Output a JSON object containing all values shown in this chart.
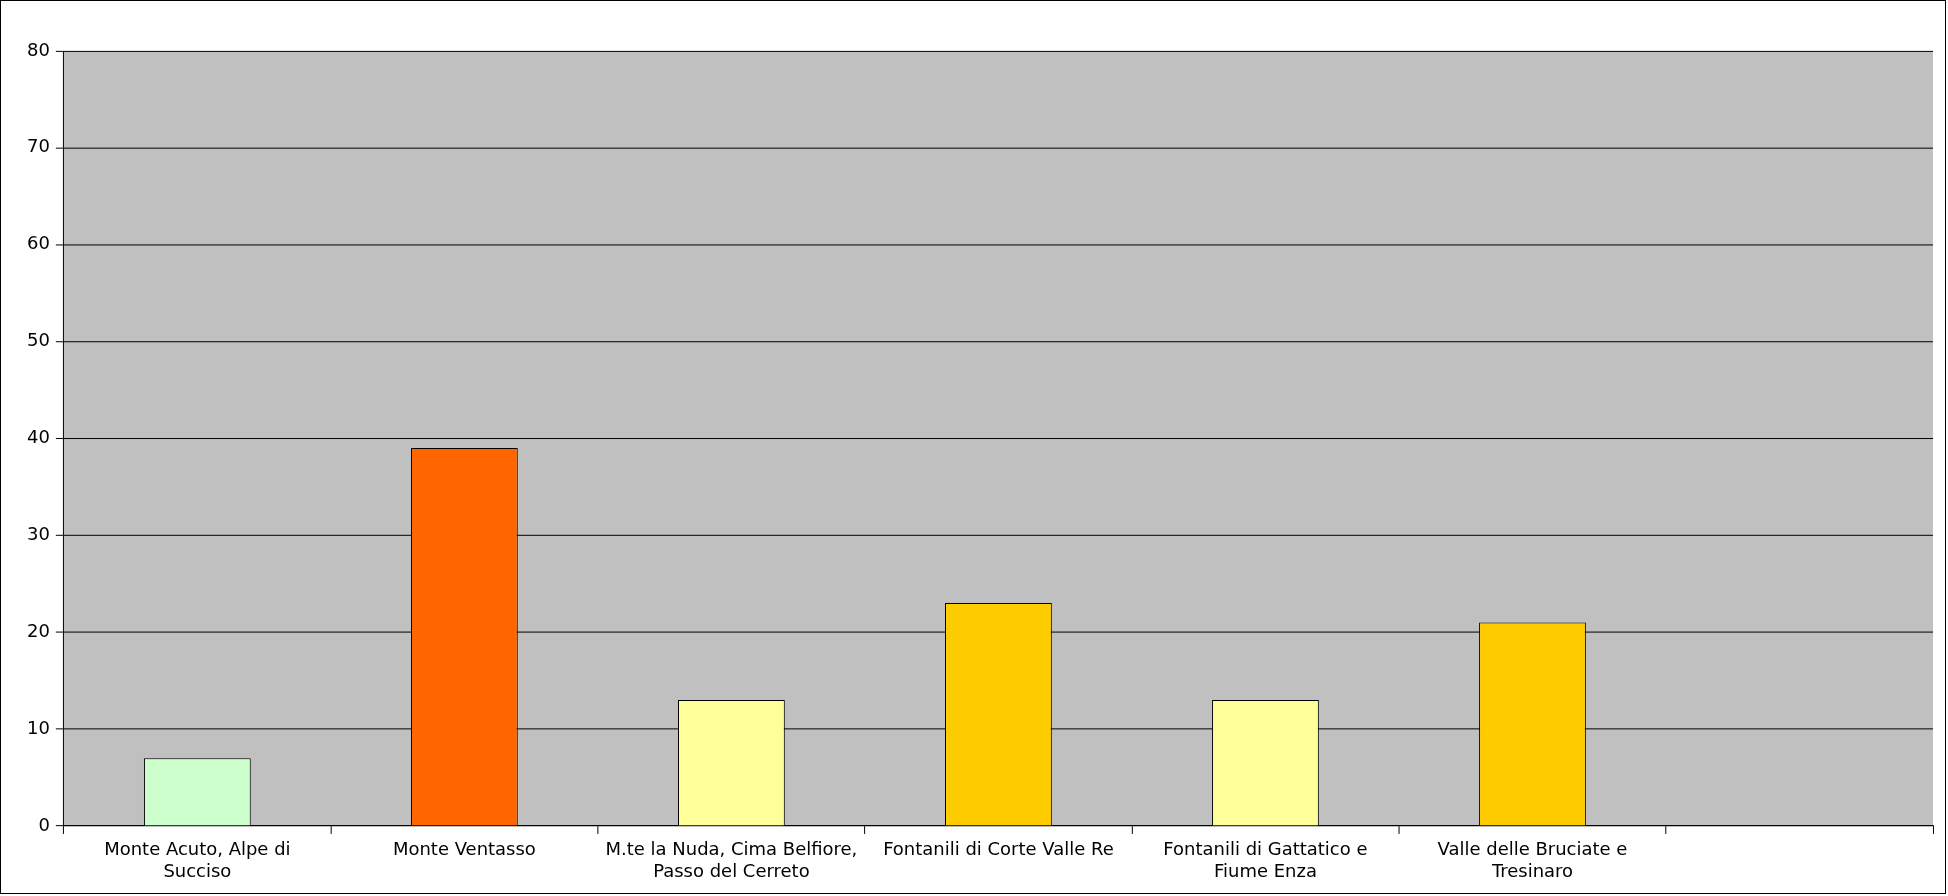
{
  "chart_data": {
    "type": "bar",
    "categories": [
      "Monte Acuto, Alpe di Succiso",
      "Monte Ventasso",
      "M.te la Nuda, Cima Belfiore, Passo del Cerreto",
      "Fontanili di Corte Valle Re",
      "Fontanili di Gattatico e Fiume Enza",
      "Valle delle Bruciate e Tresinaro",
      null
    ],
    "values": [
      7,
      39,
      13,
      23,
      13,
      21,
      null
    ],
    "colors": [
      "#ccffcc",
      "#ff6600",
      "#ffff99",
      "#ffcc00",
      "#ffff99",
      "#ffcc00",
      "#ffffff"
    ],
    "ylim": [
      0,
      80
    ],
    "yticks": [
      0,
      10,
      20,
      30,
      40,
      50,
      60,
      70,
      80
    ],
    "grid": "y",
    "legend": false
  }
}
